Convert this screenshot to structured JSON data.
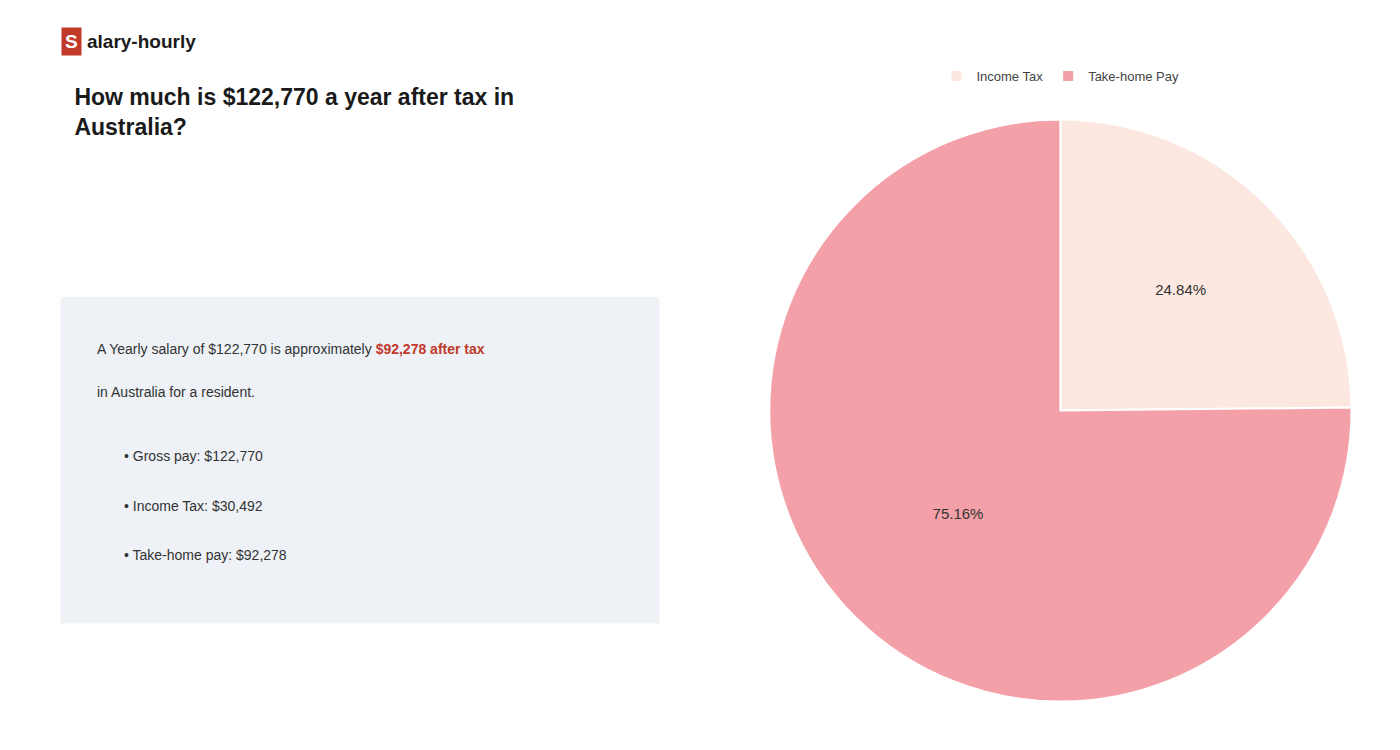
{
  "chart_data": {
    "type": "pie",
    "title": "How much is $122,770 a year after tax in\nAustralia?",
    "categories": [
      "Income Tax",
      "Take-home Pay"
    ],
    "values": [
      24.84,
      75.16
    ],
    "value_labels": [
      "24.84%",
      "75.16%"
    ],
    "colors": [
      "#fce8e0",
      "#f4a0a8"
    ],
    "data_labels": true,
    "legend": "top",
    "annotations": [
      {
        "text": "S",
        "color": "#c0392b"
      },
      {
        "text": "alary-hourly"
      },
      {
        "text": "A Yearly salary of $122,770 is approximately "
      },
      {
        "text": "$92,278 after tax",
        "color": "#c0392b"
      },
      {
        "text": "in Australia for a resident."
      },
      {
        "text": "• Gross pay: $122,770"
      },
      {
        "text": "• Income Tax: $30,492"
      },
      {
        "text": "• Take-home pay: $92,278"
      }
    ]
  }
}
